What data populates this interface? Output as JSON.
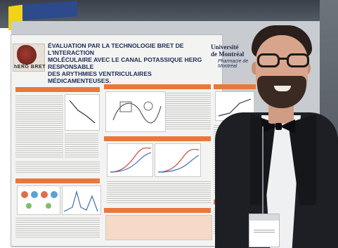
{
  "poster": {
    "title": "ÉVALUATION PAR LA TECHNOLOGIE BRET DE L'INTERACTION\nMOLÉCULAIRE AVEC LE CANAL POTASSIQUE hERG RESPONSABLE\nDES ARYTHMIES VENTRICULAIRES MÉDICAMENTEUSES.",
    "logo_text": "hERG BRET",
    "university_name": "Université\nde Montréal",
    "university_sub": "Pharmacie de Montréal"
  },
  "colors": {
    "poster_accent": "#e9773c",
    "title_blue": "#1d2a55",
    "jacket": "#1d1f24"
  }
}
